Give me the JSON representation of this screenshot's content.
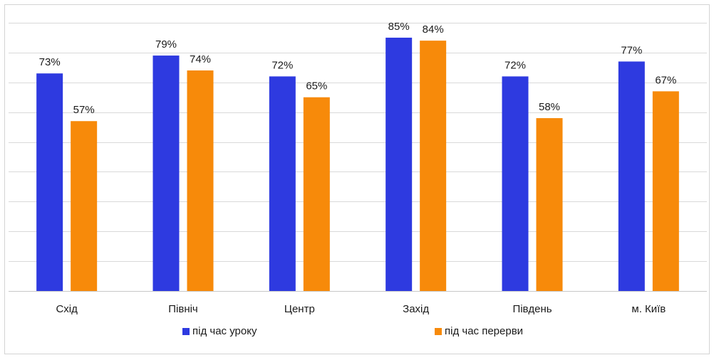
{
  "chart_data": {
    "type": "bar",
    "title": "",
    "xlabel": "",
    "ylabel": "",
    "categories": [
      "Схід",
      "Північ",
      "Центр",
      "Захід",
      "Південь",
      "м. Київ"
    ],
    "series": [
      {
        "name": "під час уроку",
        "color": "#2e3ae0",
        "values": [
          73,
          79,
          72,
          85,
          72,
          77
        ],
        "labels": [
          "73%",
          "79%",
          "72%",
          "85%",
          "72%",
          "77%"
        ]
      },
      {
        "name": "під час перерви",
        "color": "#f78a0a",
        "values": [
          57,
          74,
          65,
          84,
          58,
          67
        ],
        "labels": [
          "57%",
          "74%",
          "65%",
          "84%",
          "58%",
          "67%"
        ]
      }
    ],
    "ylim": [
      0,
      90
    ],
    "y_tick_step": 10,
    "y_axis_labels_shown": false,
    "grid": true,
    "gridline_color": "#d9d9d9",
    "legend_position": "bottom"
  }
}
